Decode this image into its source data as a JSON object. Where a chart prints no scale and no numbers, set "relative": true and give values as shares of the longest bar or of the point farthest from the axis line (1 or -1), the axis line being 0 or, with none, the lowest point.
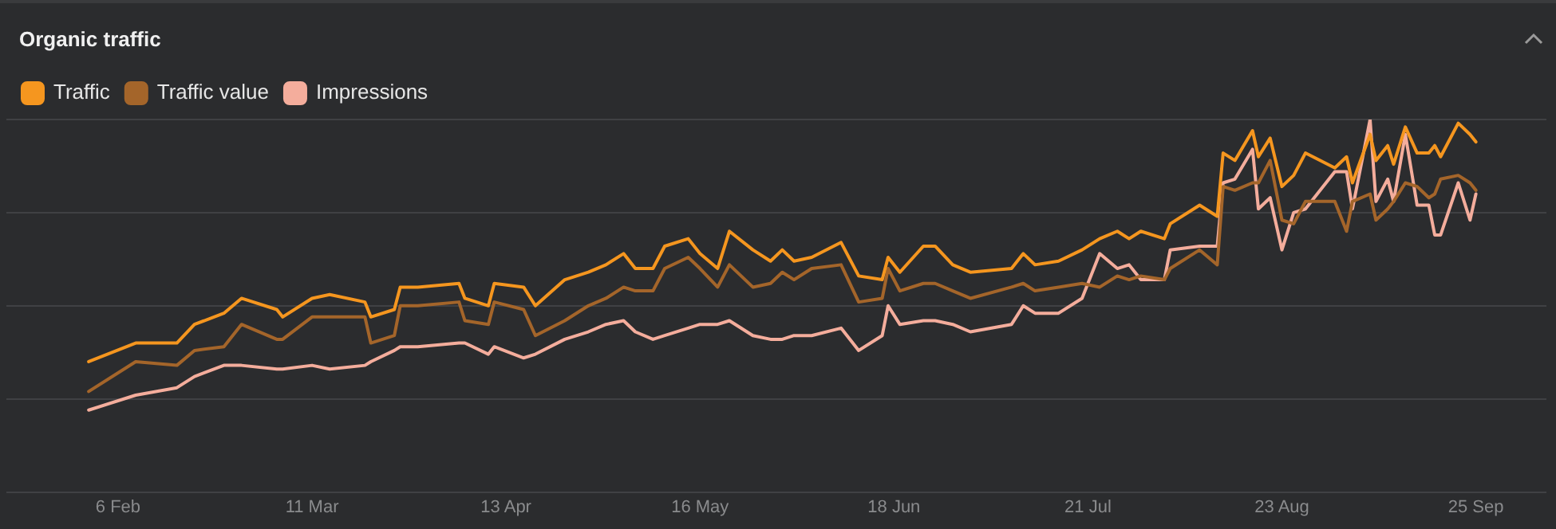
{
  "chart_data": {
    "type": "line",
    "title": "Organic traffic",
    "relative": true,
    "grid": "y",
    "legend": "top left",
    "marker": "none",
    "line_style": "solid",
    "x": [
      "--02-01",
      "--02-09",
      "--02-16",
      "--02-19",
      "--02-24",
      "--02-27",
      "--03-05",
      "--03-06",
      "--03-11",
      "--03-14",
      "--03-20",
      "--03-21",
      "--03-25",
      "--03-26",
      "--03-29",
      "--04-05",
      "--04-06",
      "--04-10",
      "--04-11",
      "--04-16",
      "--04-18",
      "--04-23",
      "--04-27",
      "--04-30",
      "--05-03",
      "--05-05",
      "--05-08",
      "--05-10",
      "--05-14",
      "--05-16",
      "--05-19",
      "--05-21",
      "--05-25",
      "--05-28",
      "--05-30",
      "--06-01",
      "--06-04",
      "--06-09",
      "--06-12",
      "--06-16",
      "--06-17",
      "--06-19",
      "--06-23",
      "--06-25",
      "--06-28",
      "--07-01",
      "--07-08",
      "--07-10",
      "--07-12",
      "--07-16",
      "--07-20",
      "--07-23",
      "--07-26",
      "--07-28",
      "--07-30",
      "--08-03",
      "--08-04",
      "--08-09",
      "--08-12",
      "--08-13",
      "--08-15",
      "--08-18",
      "--08-19",
      "--08-21",
      "--08-23",
      "--08-25",
      "--08-27",
      "--09-01",
      "--09-03",
      "--09-04",
      "--09-07",
      "--09-08",
      "--09-10",
      "--09-11",
      "--09-13",
      "--09-15",
      "--09-17",
      "--09-18",
      "--09-19",
      "--09-22",
      "--09-24",
      "--09-25"
    ],
    "xlim": [
      "--01-18",
      "--10-07"
    ],
    "xticks": [
      {
        "value": "--02-06",
        "label": "6 Feb"
      },
      {
        "value": "--03-11",
        "label": "11 Mar"
      },
      {
        "value": "--04-13",
        "label": "13 Apr"
      },
      {
        "value": "--05-16",
        "label": "16 May"
      },
      {
        "value": "--06-18",
        "label": "18 Jun"
      },
      {
        "value": "--07-21",
        "label": "21 Jul"
      },
      {
        "value": "--08-23",
        "label": "23 Aug"
      },
      {
        "value": "--09-25",
        "label": "25 Sep"
      }
    ],
    "series": [
      {
        "name": "Traffic",
        "color": "#f5961f",
        "values": [
          0.35,
          0.4,
          0.4,
          0.45,
          0.48,
          0.52,
          0.49,
          0.47,
          0.52,
          0.53,
          0.51,
          0.47,
          0.49,
          0.55,
          0.55,
          0.56,
          0.52,
          0.5,
          0.56,
          0.55,
          0.5,
          0.57,
          0.59,
          0.61,
          0.64,
          0.6,
          0.6,
          0.66,
          0.68,
          0.64,
          0.6,
          0.7,
          0.65,
          0.62,
          0.65,
          0.62,
          0.63,
          0.67,
          0.58,
          0.57,
          0.63,
          0.59,
          0.66,
          0.66,
          0.61,
          0.59,
          0.6,
          0.64,
          0.61,
          0.62,
          0.65,
          0.68,
          0.7,
          0.68,
          0.7,
          0.68,
          0.72,
          0.77,
          0.74,
          0.91,
          0.89,
          0.97,
          0.9,
          0.95,
          0.82,
          0.85,
          0.91,
          0.87,
          0.9,
          0.83,
          0.96,
          0.89,
          0.93,
          0.88,
          0.98,
          0.91,
          0.91,
          0.93,
          0.9,
          0.99,
          0.96,
          0.94
        ]
      },
      {
        "name": "Traffic value",
        "color": "#a4652a",
        "values": [
          0.27,
          0.35,
          0.34,
          0.38,
          0.39,
          0.45,
          0.41,
          0.41,
          0.47,
          0.47,
          0.47,
          0.4,
          0.42,
          0.5,
          0.5,
          0.51,
          0.46,
          0.45,
          0.51,
          0.49,
          0.42,
          0.46,
          0.5,
          0.52,
          0.55,
          0.54,
          0.54,
          0.6,
          0.63,
          0.6,
          0.55,
          0.61,
          0.55,
          0.56,
          0.59,
          0.57,
          0.6,
          0.61,
          0.51,
          0.52,
          0.6,
          0.54,
          0.56,
          0.56,
          0.54,
          0.52,
          0.55,
          0.56,
          0.54,
          0.55,
          0.56,
          0.55,
          0.58,
          0.57,
          0.58,
          0.57,
          0.6,
          0.65,
          0.61,
          0.82,
          0.81,
          0.83,
          0.83,
          0.89,
          0.73,
          0.72,
          0.78,
          0.78,
          0.7,
          0.78,
          0.8,
          0.73,
          0.76,
          0.78,
          0.83,
          0.82,
          0.79,
          0.8,
          0.84,
          0.85,
          0.83,
          0.81
        ]
      },
      {
        "name": "Impressions",
        "color": "#f4ad9c",
        "values": [
          0.22,
          0.26,
          0.28,
          0.31,
          0.34,
          0.34,
          0.33,
          0.33,
          0.34,
          0.33,
          0.34,
          0.35,
          0.38,
          0.39,
          0.39,
          0.4,
          0.4,
          0.37,
          0.39,
          0.36,
          0.37,
          0.41,
          0.43,
          0.45,
          0.46,
          0.43,
          0.41,
          0.42,
          0.44,
          0.45,
          0.45,
          0.46,
          0.42,
          0.41,
          0.41,
          0.42,
          0.42,
          0.44,
          0.38,
          0.42,
          0.5,
          0.45,
          0.46,
          0.46,
          0.45,
          0.43,
          0.45,
          0.5,
          0.48,
          0.48,
          0.52,
          0.64,
          0.6,
          0.61,
          0.57,
          0.57,
          0.65,
          0.66,
          0.66,
          0.83,
          0.84,
          0.92,
          0.76,
          0.79,
          0.65,
          0.75,
          0.76,
          0.86,
          0.86,
          0.76,
          1.0,
          0.78,
          0.84,
          0.78,
          0.96,
          0.77,
          0.77,
          0.69,
          0.69,
          0.83,
          0.73,
          0.8
        ]
      }
    ]
  }
}
